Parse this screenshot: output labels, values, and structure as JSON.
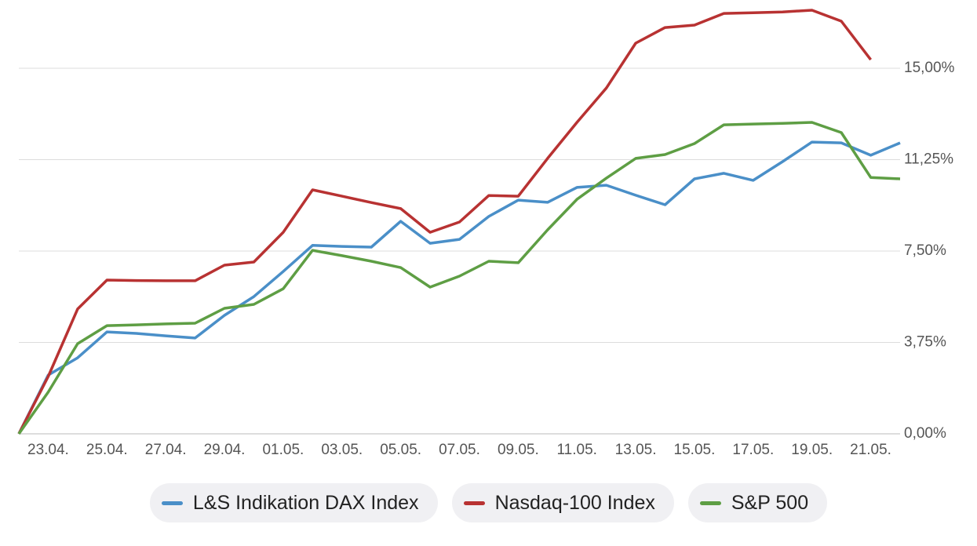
{
  "chart_data": {
    "type": "line",
    "x": [
      null,
      "23.04.",
      null,
      "25.04.",
      null,
      "27.04.",
      null,
      "29.04.",
      null,
      "01.05.",
      null,
      "03.05.",
      null,
      "05.05.",
      null,
      "07.05.",
      null,
      "09.05.",
      null,
      "11.05.",
      null,
      "13.05.",
      null,
      "15.05.",
      null,
      "17.05.",
      null,
      "19.05.",
      null,
      "21.05.",
      null
    ],
    "series": [
      {
        "name": "L&S Indikation DAX Index",
        "color": "#4a8fc8",
        "values": [
          0,
          2.41,
          3.12,
          4.18,
          4.12,
          4.02,
          3.93,
          4.86,
          5.63,
          6.66,
          7.73,
          7.69,
          7.66,
          8.72,
          7.82,
          7.98,
          8.92,
          9.59,
          9.5,
          10.11,
          10.2,
          9.79,
          9.4,
          10.46,
          10.69,
          10.4,
          11.17,
          11.97,
          11.94,
          11.43,
          11.94
        ]
      },
      {
        "name": "Nasdaq-100 Index",
        "color": "#b83232",
        "values": [
          0,
          2.35,
          5.12,
          6.31,
          6.29,
          6.28,
          6.28,
          6.92,
          7.05,
          8.27,
          10.01,
          9.75,
          9.49,
          9.24,
          8.27,
          8.69,
          9.78,
          9.75,
          11.3,
          12.78,
          14.19,
          16.03,
          16.67,
          16.77,
          17.25,
          17.28,
          17.31,
          17.38,
          16.93,
          15.35,
          null
        ]
      },
      {
        "name": "S&P 500",
        "color": "#5e9e44",
        "values": [
          0,
          1.71,
          3.7,
          4.44,
          4.47,
          4.51,
          4.54,
          5.15,
          5.31,
          5.95,
          7.53,
          7.31,
          7.08,
          6.82,
          6.02,
          6.47,
          7.08,
          7.02,
          8.37,
          9.62,
          10.49,
          11.3,
          11.46,
          11.91,
          12.68,
          12.71,
          12.74,
          12.78,
          12.36,
          10.52,
          10.46
        ]
      }
    ],
    "ylim": [
      0,
      17.8
    ],
    "yticks": [
      {
        "value": 0,
        "label": "0,00%"
      },
      {
        "value": 3.75,
        "label": "3,75%"
      },
      {
        "value": 7.5,
        "label": "7,50%"
      },
      {
        "value": 11.25,
        "label": "11,25%"
      },
      {
        "value": 15,
        "label": "15,00%"
      }
    ],
    "grid": true
  }
}
